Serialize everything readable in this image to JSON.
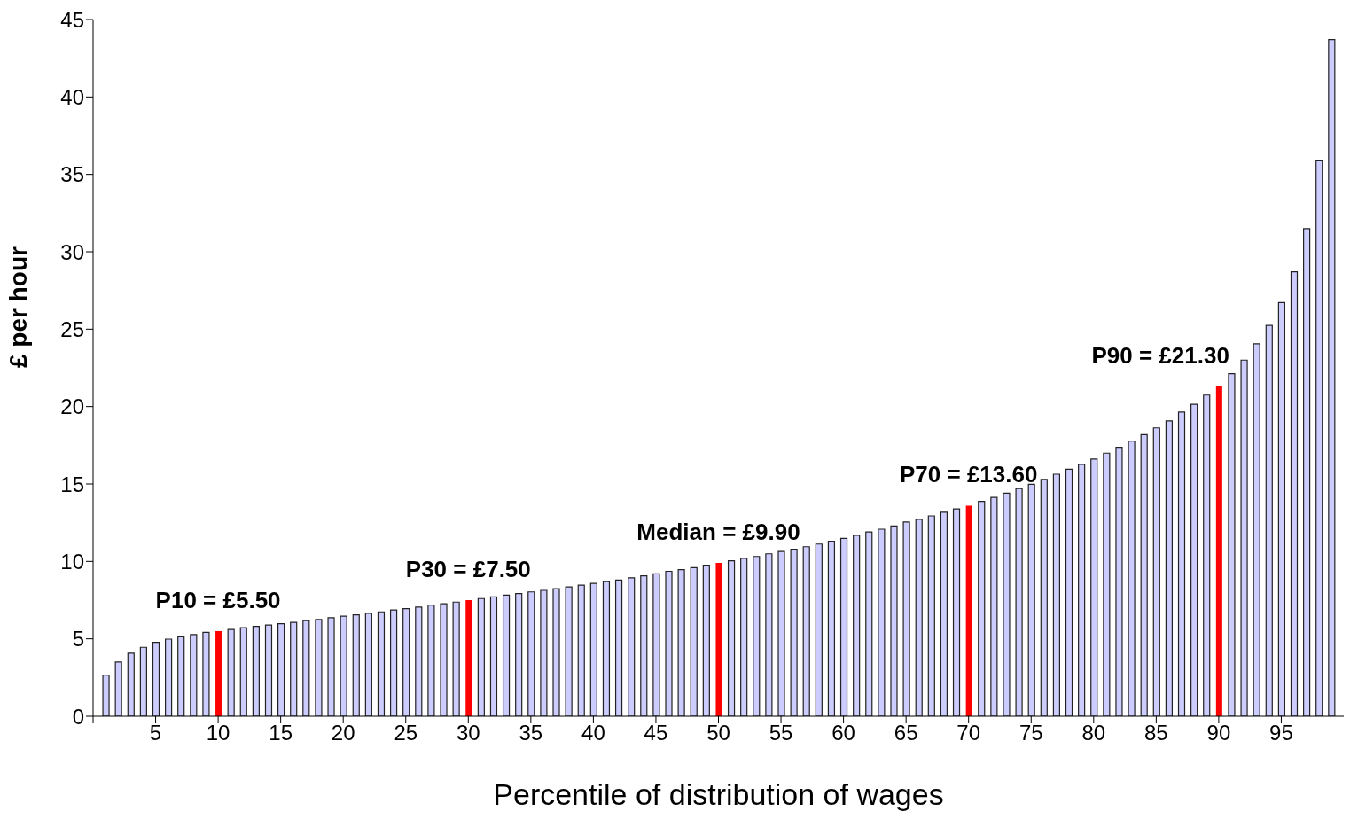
{
  "chart_data": {
    "type": "bar",
    "xlabel": "Percentile of distribution of wages",
    "ylabel": "£ per hour",
    "categories": [
      null,
      null,
      null,
      null,
      "5",
      null,
      null,
      null,
      null,
      "10",
      null,
      null,
      null,
      null,
      "15",
      null,
      null,
      null,
      null,
      "20",
      null,
      null,
      null,
      null,
      "25",
      null,
      null,
      null,
      null,
      "30",
      null,
      null,
      null,
      null,
      "35",
      null,
      null,
      null,
      null,
      "40",
      null,
      null,
      null,
      null,
      "45",
      null,
      null,
      null,
      null,
      "50",
      null,
      null,
      null,
      null,
      "55",
      null,
      null,
      null,
      null,
      "60",
      null,
      null,
      null,
      null,
      "65",
      null,
      null,
      null,
      null,
      "70",
      null,
      null,
      null,
      null,
      "75",
      null,
      null,
      null,
      null,
      "80",
      null,
      null,
      null,
      null,
      "85",
      null,
      null,
      null,
      null,
      "90",
      null,
      null,
      null,
      null,
      "95",
      null,
      null,
      null,
      null
    ],
    "values": [
      2.65,
      3.5,
      4.07,
      4.45,
      4.77,
      4.98,
      5.13,
      5.28,
      5.42,
      5.5,
      5.6,
      5.72,
      5.8,
      5.89,
      5.98,
      6.06,
      6.17,
      6.25,
      6.36,
      6.46,
      6.55,
      6.65,
      6.74,
      6.86,
      6.95,
      7.05,
      7.18,
      7.26,
      7.37,
      7.5,
      7.6,
      7.71,
      7.82,
      7.92,
      8.03,
      8.13,
      8.24,
      8.35,
      8.47,
      8.58,
      8.69,
      8.8,
      8.94,
      9.07,
      9.2,
      9.36,
      9.47,
      9.6,
      9.76,
      9.9,
      10.04,
      10.19,
      10.32,
      10.49,
      10.64,
      10.78,
      10.95,
      11.12,
      11.3,
      11.49,
      11.69,
      11.9,
      12.08,
      12.29,
      12.54,
      12.71,
      12.94,
      13.18,
      13.39,
      13.6,
      13.88,
      14.13,
      14.41,
      14.7,
      14.98,
      15.3,
      15.63,
      15.95,
      16.27,
      16.61,
      16.99,
      17.37,
      17.77,
      18.18,
      18.62,
      19.07,
      19.64,
      20.15,
      20.74,
      21.3,
      22.12,
      23.0,
      24.05,
      25.24,
      26.72,
      28.7,
      31.49,
      35.88,
      43.7
    ],
    "color": "#ccccff",
    "colors": [
      "#ccccff",
      "#ccccff",
      "#ccccff",
      "#ccccff",
      "#ccccff",
      "#ccccff",
      "#ccccff",
      "#ccccff",
      "#ccccff",
      "#ff0000",
      "#ccccff",
      "#ccccff",
      "#ccccff",
      "#ccccff",
      "#ccccff",
      "#ccccff",
      "#ccccff",
      "#ccccff",
      "#ccccff",
      "#ccccff",
      "#ccccff",
      "#ccccff",
      "#ccccff",
      "#ccccff",
      "#ccccff",
      "#ccccff",
      "#ccccff",
      "#ccccff",
      "#ccccff",
      "#ff0000",
      "#ccccff",
      "#ccccff",
      "#ccccff",
      "#ccccff",
      "#ccccff",
      "#ccccff",
      "#ccccff",
      "#ccccff",
      "#ccccff",
      "#ccccff",
      "#ccccff",
      "#ccccff",
      "#ccccff",
      "#ccccff",
      "#ccccff",
      "#ccccff",
      "#ccccff",
      "#ccccff",
      "#ccccff",
      "#ff0000",
      "#ccccff",
      "#ccccff",
      "#ccccff",
      "#ccccff",
      "#ccccff",
      "#ccccff",
      "#ccccff",
      "#ccccff",
      "#ccccff",
      "#ccccff",
      "#ccccff",
      "#ccccff",
      "#ccccff",
      "#ccccff",
      "#ccccff",
      "#ccccff",
      "#ccccff",
      "#ccccff",
      "#ccccff",
      "#ff0000",
      "#ccccff",
      "#ccccff",
      "#ccccff",
      "#ccccff",
      "#ccccff",
      "#ccccff",
      "#ccccff",
      "#ccccff",
      "#ccccff",
      "#ccccff",
      "#ccccff",
      "#ccccff",
      "#ccccff",
      "#ccccff",
      "#ccccff",
      "#ccccff",
      "#ccccff",
      "#ccccff",
      "#ccccff",
      "#ff0000",
      "#ccccff",
      "#ccccff",
      "#ccccff",
      "#ccccff",
      "#ccccff",
      "#ccccff",
      "#ccccff",
      "#ccccff",
      "#ccccff"
    ],
    "ylim": [
      0,
      45
    ],
    "yticks": [
      0,
      5,
      10,
      15,
      20,
      25,
      30,
      35,
      40,
      45
    ],
    "grid": false,
    "legend": false,
    "annotations": [
      {
        "text": "P10 = £5.50",
        "x": "10",
        "y": 5.5
      },
      {
        "text": "P30 = £7.50",
        "x": "30",
        "y": 7.5
      },
      {
        "text": "Median = £9.90",
        "x": "50",
        "y": 9.9
      },
      {
        "text": "P70 = £13.60",
        "x": "70",
        "y": 13.6
      },
      {
        "text": "P90 = £21.30",
        "x": "90",
        "y": 21.3
      }
    ]
  }
}
